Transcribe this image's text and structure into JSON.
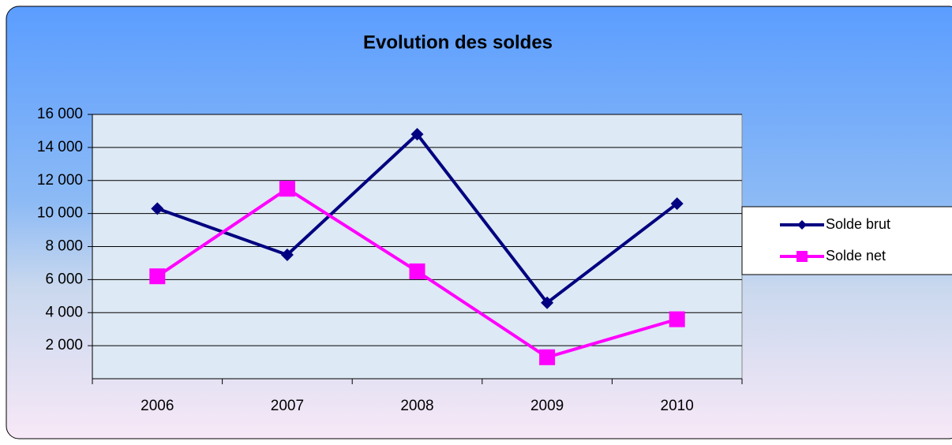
{
  "chart_data": {
    "type": "line",
    "title": "Evolution des soldes",
    "categories": [
      "2006",
      "2007",
      "2008",
      "2009",
      "2010"
    ],
    "series": [
      {
        "name": "Solde brut",
        "color": "#000080",
        "marker": "diamond",
        "values": [
          10300,
          7500,
          14800,
          4600,
          10600
        ]
      },
      {
        "name": "Solde net",
        "color": "#ff00ff",
        "marker": "square",
        "values": [
          6200,
          11500,
          6500,
          1300,
          3600
        ]
      }
    ],
    "ylim": [
      0,
      16000
    ],
    "yticks": [
      {
        "value": 2000,
        "label": "2 000"
      },
      {
        "value": 4000,
        "label": "4 000"
      },
      {
        "value": 6000,
        "label": "6 000"
      },
      {
        "value": 8000,
        "label": "8 000"
      },
      {
        "value": 10000,
        "label": "10 000"
      },
      {
        "value": 12000,
        "label": "12 000"
      },
      {
        "value": 14000,
        "label": "14 000"
      },
      {
        "value": 16000,
        "label": "16 000"
      }
    ],
    "grid": true,
    "legend": "right"
  }
}
